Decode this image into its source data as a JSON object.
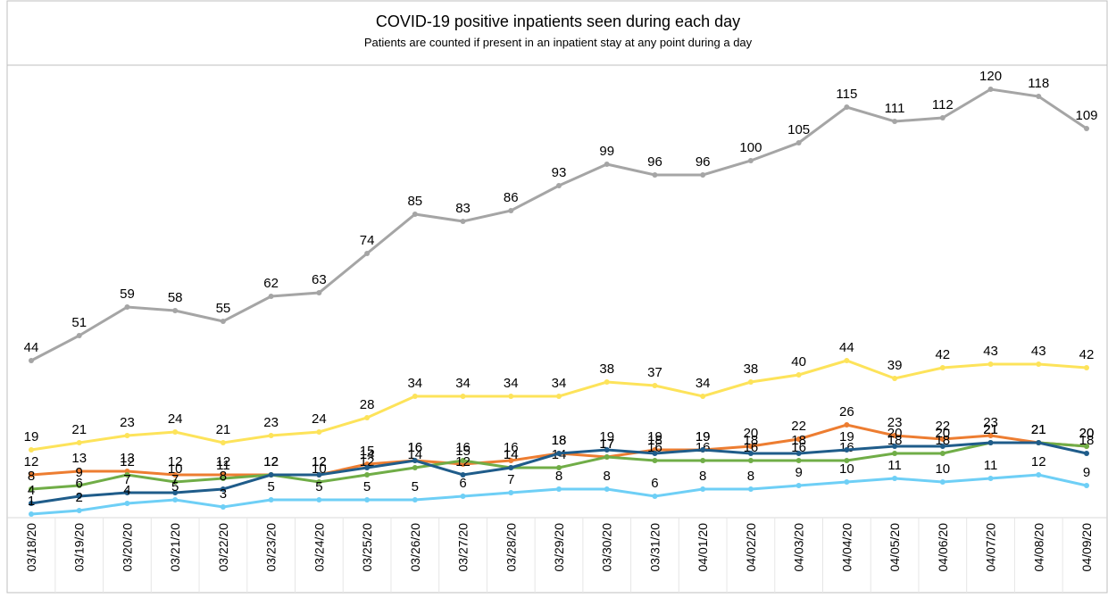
{
  "chart_data": {
    "type": "line",
    "title": "COVID-19 positive inpatients seen during each day",
    "subtitle": "Patients are counted if present in an inpatient stay at any point during a day",
    "categories": [
      "03/18/20",
      "03/19/20",
      "03/20/20",
      "03/21/20",
      "03/22/20",
      "03/23/20",
      "03/24/20",
      "03/25/20",
      "03/26/20",
      "03/27/20",
      "03/28/20",
      "03/29/20",
      "03/30/20",
      "03/31/20",
      "04/01/20",
      "04/02/20",
      "04/03/20",
      "04/04/20",
      "04/05/20",
      "04/06/20",
      "04/07/20",
      "04/08/20",
      "04/09/20"
    ],
    "ylim": [
      0,
      145
    ],
    "series": [
      {
        "color": "#a5a5a5",
        "values": [
          44,
          51,
          59,
          58,
          55,
          62,
          63,
          74,
          85,
          83,
          86,
          93,
          99,
          96,
          96,
          100,
          105,
          115,
          111,
          112,
          120,
          118,
          109
        ]
      },
      {
        "color": "#fde35a",
        "values": [
          19,
          21,
          23,
          24,
          21,
          23,
          24,
          28,
          34,
          34,
          34,
          34,
          38,
          37,
          34,
          38,
          40,
          44,
          39,
          42,
          43,
          43,
          42
        ]
      },
      {
        "color": "#ed7d31",
        "values": [
          12,
          13,
          13,
          12,
          12,
          12,
          12,
          15,
          16,
          15,
          16,
          18,
          17,
          19,
          19,
          20,
          22,
          26,
          23,
          22,
          23,
          21,
          20
        ]
      },
      {
        "color": "#70ad47",
        "values": [
          8,
          9,
          12,
          10,
          11,
          12,
          10,
          12,
          14,
          16,
          14,
          14,
          17,
          16,
          16,
          16,
          16,
          16,
          18,
          18,
          21,
          21,
          20
        ]
      },
      {
        "color": "#1f5c8a",
        "values": [
          4,
          6,
          7,
          7,
          8,
          12,
          12,
          14,
          16,
          12,
          14,
          18,
          19,
          18,
          19,
          18,
          18,
          19,
          20,
          20,
          21,
          21,
          18
        ]
      },
      {
        "color": "#6ecff6",
        "values": [
          1,
          2,
          4,
          5,
          3,
          5,
          5,
          5,
          5,
          6,
          7,
          8,
          8,
          6,
          8,
          8,
          9,
          10,
          11,
          10,
          11,
          12,
          9
        ]
      }
    ]
  }
}
